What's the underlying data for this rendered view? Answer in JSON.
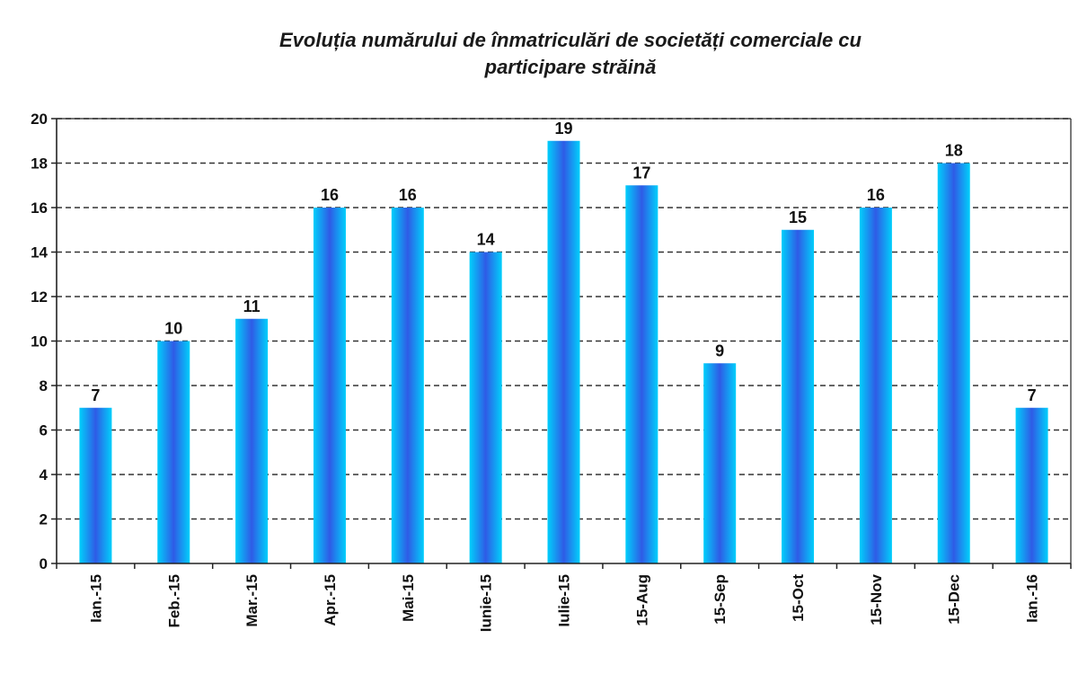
{
  "chart_data": {
    "type": "bar",
    "title": "Evoluția numărului de înmatriculări de societăți comerciale cu participare străină",
    "title_lines": [
      "Evoluția numărului de înmatriculări de societăți comerciale cu",
      "participare străină"
    ],
    "categories": [
      "Ian.-15",
      "Feb.-15",
      "Mar.-15",
      "Apr.-15",
      "Mai-15",
      "Iunie-15",
      "Iulie-15",
      "15-Aug",
      "15-Sep",
      "15-Oct",
      "15-Nov",
      "15-Dec",
      "Ian.-16"
    ],
    "values": [
      7,
      10,
      11,
      16,
      16,
      14,
      19,
      17,
      9,
      15,
      16,
      18,
      7
    ],
    "xlabel": "",
    "ylabel": "",
    "ylim": [
      0,
      20
    ],
    "yticks": [
      0,
      2,
      4,
      6,
      8,
      10,
      12,
      14,
      16,
      18,
      20
    ],
    "grid": "horizontal-dashed",
    "legend": "none",
    "data_labels": true,
    "colors": {
      "bar_edge": "#00cffb",
      "bar_center": "#2f5be6",
      "grid": "#333333",
      "axis": "#222222"
    }
  }
}
